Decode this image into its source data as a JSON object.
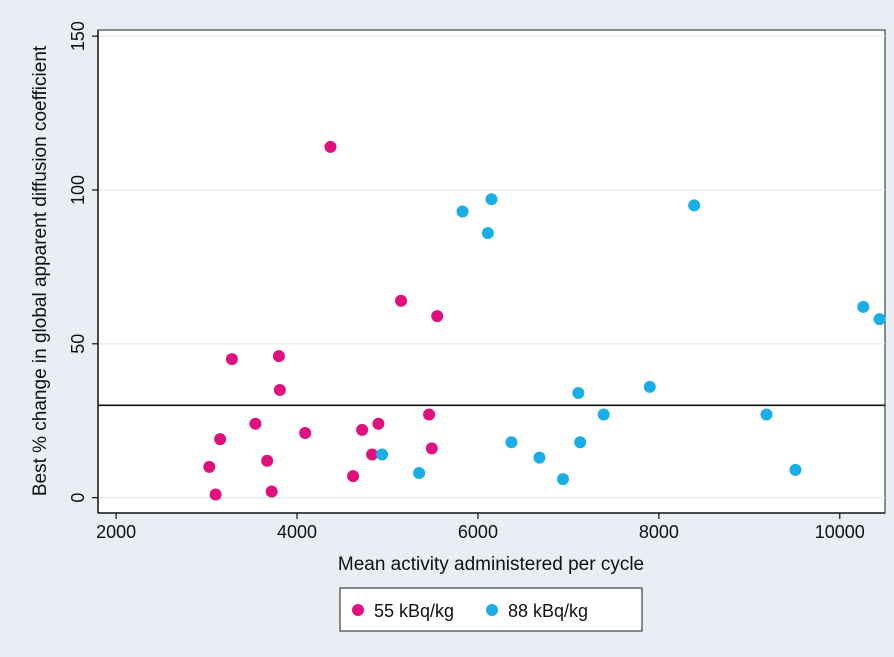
{
  "chart_data": {
    "type": "scatter",
    "xlabel": "Mean activity administered per cycle",
    "ylabel": "Best % change in global apparent diffusion coefficient",
    "xlim": [
      1800,
      10500
    ],
    "ylim": [
      -5,
      152
    ],
    "xticks": [
      2000,
      4000,
      6000,
      8000,
      10000
    ],
    "yticks": [
      0,
      50,
      100,
      150
    ],
    "grid": true,
    "reference_line": {
      "y": 30
    },
    "legend_position": "bottom-center",
    "series": [
      {
        "name": "55 kBq/kg",
        "color": "#e0117f",
        "points": [
          [
            3030,
            10
          ],
          [
            3100,
            1
          ],
          [
            3150,
            19
          ],
          [
            3280,
            45
          ],
          [
            3540,
            24
          ],
          [
            3670,
            12
          ],
          [
            3720,
            2
          ],
          [
            3800,
            46
          ],
          [
            3810,
            35
          ],
          [
            4090,
            21
          ],
          [
            4370,
            114
          ],
          [
            4620,
            7
          ],
          [
            4720,
            22
          ],
          [
            4830,
            14
          ],
          [
            4900,
            24
          ],
          [
            5150,
            64
          ],
          [
            5460,
            27
          ],
          [
            5490,
            16
          ],
          [
            5550,
            59
          ]
        ]
      },
      {
        "name": "88 kBq/kg",
        "color": "#1aaee6",
        "points": [
          [
            4940,
            14
          ],
          [
            5350,
            8
          ],
          [
            5830,
            93
          ],
          [
            6110,
            86
          ],
          [
            6150,
            97
          ],
          [
            6370,
            18
          ],
          [
            6680,
            13
          ],
          [
            6940,
            6
          ],
          [
            7110,
            34
          ],
          [
            7130,
            18
          ],
          [
            7390,
            27
          ],
          [
            7900,
            36
          ],
          [
            8390,
            95
          ],
          [
            9190,
            27
          ],
          [
            9510,
            9
          ],
          [
            10260,
            62
          ],
          [
            10440,
            58
          ]
        ]
      }
    ]
  }
}
